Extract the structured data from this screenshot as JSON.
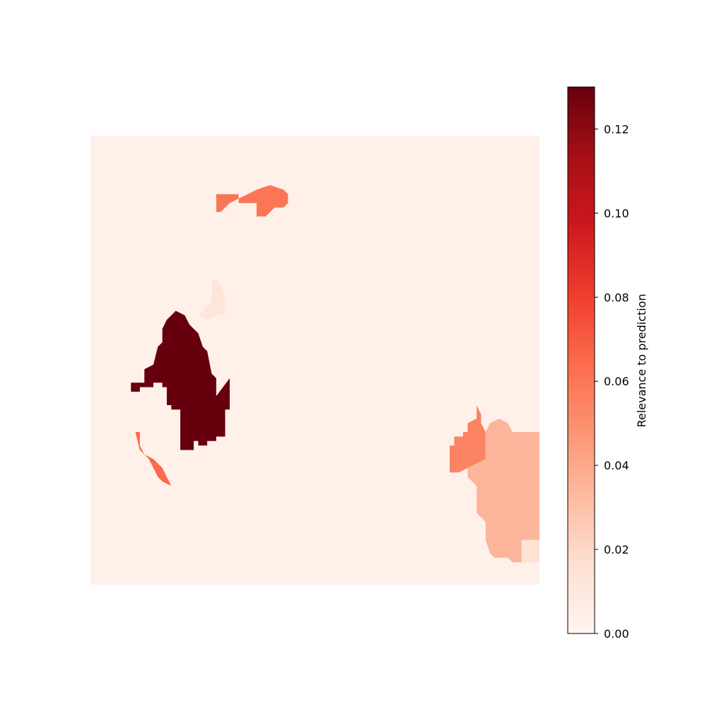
{
  "chart_data": {
    "type": "heatmap",
    "title": "",
    "xlabel": "",
    "ylabel": "",
    "axes_visible": false,
    "grid": false,
    "colormap": "Reds",
    "colormap_stops": [
      "#fff5f0",
      "#fee0d2",
      "#fcbba1",
      "#fc9272",
      "#fb6a4a",
      "#ef3b2c",
      "#cb181d",
      "#a50f15",
      "#67000d"
    ],
    "value_range": [
      0,
      0.13
    ],
    "background_value": 0.003,
    "grid_resolution": [
      100,
      100
    ],
    "regions": [
      {
        "value": 0.13,
        "cells": [
          [
            9,
            55
          ],
          [
            12,
            55
          ],
          [
            12,
            52
          ],
          [
            14,
            51
          ],
          [
            15,
            47
          ],
          [
            16,
            46
          ],
          [
            16,
            43
          ],
          [
            17,
            41
          ],
          [
            18,
            40
          ],
          [
            19,
            39
          ],
          [
            21,
            40
          ],
          [
            22,
            42
          ],
          [
            23,
            43
          ],
          [
            24,
            44
          ],
          [
            25,
            47
          ],
          [
            26,
            48
          ],
          [
            27,
            53
          ],
          [
            28,
            54
          ],
          [
            28,
            58
          ],
          [
            31,
            54
          ],
          [
            31,
            61
          ],
          [
            30,
            61
          ],
          [
            30,
            67
          ],
          [
            28,
            67
          ],
          [
            28,
            68
          ],
          [
            26,
            68
          ],
          [
            26,
            69
          ],
          [
            24,
            69
          ],
          [
            24,
            68
          ],
          [
            23,
            68
          ],
          [
            23,
            70
          ],
          [
            20,
            70
          ],
          [
            20,
            61
          ],
          [
            18,
            61
          ],
          [
            18,
            60
          ],
          [
            17,
            60
          ],
          [
            17,
            56
          ],
          [
            16,
            56
          ],
          [
            16,
            55
          ],
          [
            14,
            55
          ],
          [
            14,
            56
          ],
          [
            11,
            56
          ],
          [
            11,
            57
          ],
          [
            9,
            57
          ]
        ]
      },
      {
        "value": 0.06,
        "cells": [
          [
            28,
            13
          ],
          [
            33,
            13
          ],
          [
            33,
            15
          ],
          [
            37,
            15
          ],
          [
            37,
            18
          ],
          [
            39,
            18
          ],
          [
            40,
            17
          ],
          [
            41,
            16
          ],
          [
            43,
            16
          ],
          [
            44,
            15
          ],
          [
            44,
            13
          ],
          [
            43,
            12
          ],
          [
            40,
            11
          ],
          [
            37,
            12
          ],
          [
            35,
            13
          ],
          [
            33,
            14
          ],
          [
            31,
            15
          ],
          [
            30,
            16
          ],
          [
            29,
            17
          ],
          [
            28,
            17
          ]
        ]
      },
      {
        "value": 0.065,
        "cells": [
          [
            9,
            66
          ],
          [
            10,
            66
          ],
          [
            11,
            70
          ],
          [
            13,
            72
          ],
          [
            14,
            74
          ],
          [
            15,
            76
          ],
          [
            16,
            77
          ],
          [
            18,
            78
          ],
          [
            17,
            76
          ],
          [
            16,
            74
          ],
          [
            14,
            72
          ],
          [
            12,
            71
          ],
          [
            11,
            69
          ],
          [
            11,
            66
          ]
        ]
      },
      {
        "value": 0.012,
        "cells": [
          [
            27,
            32
          ],
          [
            27,
            37
          ],
          [
            26,
            38
          ],
          [
            25,
            39
          ],
          [
            24,
            40
          ],
          [
            26,
            41
          ],
          [
            28,
            40
          ],
          [
            30,
            40
          ],
          [
            30,
            36
          ],
          [
            29,
            33
          ],
          [
            28,
            32
          ]
        ]
      },
      {
        "value": 0.055,
        "cells": [
          [
            80,
            75
          ],
          [
            80,
            69
          ],
          [
            81,
            69
          ],
          [
            81,
            67
          ],
          [
            83,
            67
          ],
          [
            83,
            66
          ],
          [
            84,
            66
          ],
          [
            84,
            64
          ],
          [
            86,
            63
          ],
          [
            86,
            60
          ],
          [
            87,
            62
          ],
          [
            87,
            64
          ],
          [
            88,
            66
          ],
          [
            88,
            72
          ],
          [
            86,
            73
          ],
          [
            84,
            74
          ],
          [
            82,
            75
          ]
        ]
      },
      {
        "value": 0.035,
        "cells": [
          [
            84,
            74
          ],
          [
            86,
            73
          ],
          [
            88,
            72
          ],
          [
            88,
            66
          ],
          [
            89,
            64
          ],
          [
            91,
            63
          ],
          [
            93,
            64
          ],
          [
            94,
            66
          ],
          [
            100,
            66
          ],
          [
            100,
            95
          ],
          [
            94,
            95
          ],
          [
            93,
            94
          ],
          [
            90,
            94
          ],
          [
            89,
            93
          ],
          [
            88,
            90
          ],
          [
            88,
            86
          ],
          [
            86,
            84
          ],
          [
            86,
            78
          ],
          [
            84,
            76
          ]
        ]
      },
      {
        "value": 0.015,
        "cells": [
          [
            96,
            90
          ],
          [
            100,
            90
          ],
          [
            100,
            95
          ],
          [
            96,
            95
          ]
        ]
      }
    ]
  },
  "colorbar": {
    "label": "Relevance to prediction",
    "ticks": [
      {
        "value": 0.0,
        "label": "0.00"
      },
      {
        "value": 0.02,
        "label": "0.02"
      },
      {
        "value": 0.04,
        "label": "0.04"
      },
      {
        "value": 0.06,
        "label": "0.06"
      },
      {
        "value": 0.08,
        "label": "0.08"
      },
      {
        "value": 0.1,
        "label": "0.10"
      },
      {
        "value": 0.12,
        "label": "0.12"
      }
    ]
  }
}
